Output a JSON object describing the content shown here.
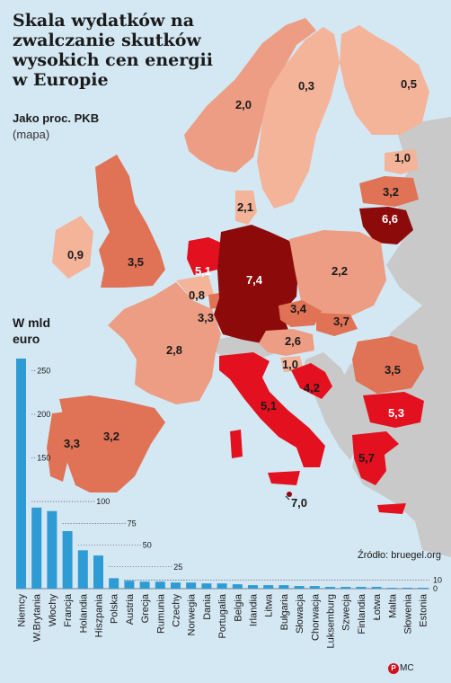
{
  "title": "Skala wydatków na zwalczanie skutków wysokich cen energii w Europie",
  "map_legend": {
    "heading": "Jako proc. PKB",
    "note": "(mapa)"
  },
  "bar_heading": "W mld euro",
  "source": "Źródło: bruegel.org",
  "logo": {
    "mark": "PAP",
    "initials": "MC"
  },
  "colors": {
    "sea": "#d4e8f4",
    "lightest": "#f3b49a",
    "light": "#ec9d83",
    "medium": "#e07256",
    "red": "#e3101f",
    "dark": "#8c0a0a",
    "nodata": "#c9c9c9",
    "bar": "#2e9bd4"
  },
  "map_values": [
    {
      "country": "Norwegia",
      "value": "2,0",
      "tone": "light"
    },
    {
      "country": "Szwecja",
      "value": "0,3",
      "tone": "lightest"
    },
    {
      "country": "Finlandia",
      "value": "0,5",
      "tone": "lightest"
    },
    {
      "country": "Estonia",
      "value": "1,0",
      "tone": "lightest"
    },
    {
      "country": "Łotwa",
      "value": "3,2",
      "tone": "medium"
    },
    {
      "country": "Litwa",
      "value": "6,6",
      "tone": "dark"
    },
    {
      "country": "Dania",
      "value": "2,1",
      "tone": "light"
    },
    {
      "country": "Irlandia",
      "value": "0,9",
      "tone": "lightest"
    },
    {
      "country": "W.Brytania",
      "value": "3,5",
      "tone": "medium"
    },
    {
      "country": "Holandia",
      "value": "5,1",
      "tone": "red"
    },
    {
      "country": "Belgia",
      "value": "0,8",
      "tone": "lightest"
    },
    {
      "country": "Luksemburg",
      "value": "3,3",
      "tone": "medium"
    },
    {
      "country": "Niemcy",
      "value": "7,4",
      "tone": "dark"
    },
    {
      "country": "Polska",
      "value": "2,2",
      "tone": "light"
    },
    {
      "country": "Czechy",
      "value": "3,4",
      "tone": "medium"
    },
    {
      "country": "Słowacja",
      "value": "3,7",
      "tone": "medium"
    },
    {
      "country": "Austria",
      "value": "2,6",
      "tone": "light"
    },
    {
      "country": "Francja",
      "value": "2,8",
      "tone": "light"
    },
    {
      "country": "Słowenia",
      "value": "1,0",
      "tone": "lightest"
    },
    {
      "country": "Chorwacja",
      "value": "4,2",
      "tone": "red"
    },
    {
      "country": "Rumunia",
      "value": "3,5",
      "tone": "medium"
    },
    {
      "country": "Bułgaria",
      "value": "5,3",
      "tone": "red"
    },
    {
      "country": "Włochy",
      "value": "5,1",
      "tone": "red"
    },
    {
      "country": "Hiszpania",
      "value": "3,2",
      "tone": "medium"
    },
    {
      "country": "Portugalia",
      "value": "3,3",
      "tone": "medium"
    },
    {
      "country": "Grecja",
      "value": "5,7",
      "tone": "red"
    },
    {
      "country": "Malta",
      "value": "7,0",
      "tone": "dark"
    }
  ],
  "chart_data": {
    "type": "bar",
    "ylabel": "W mld euro",
    "ylim": [
      0,
      265
    ],
    "yticks": [
      0,
      10,
      25,
      50,
      75,
      100,
      150,
      200,
      250
    ],
    "categories": [
      "Niemcy",
      "W.Brytania",
      "Włochy",
      "Francja",
      "Holandia",
      "Hiszpania",
      "Polska",
      "Austria",
      "Grecja",
      "Rumunia",
      "Czechy",
      "Norwegia",
      "Dania",
      "Portugalia",
      "Belgia",
      "Irlandia",
      "Litwa",
      "Bułgaria",
      "Słowacja",
      "Chorwacja",
      "Luksemburg",
      "Szwecja",
      "Finlandia",
      "Łotwa",
      "Malta",
      "Słowenia",
      "Estonia"
    ],
    "values": [
      264,
      93,
      89,
      66,
      44,
      38,
      12,
      9,
      8,
      8,
      7,
      7,
      6,
      6,
      5,
      4,
      4,
      4,
      3,
      3,
      2,
      2,
      2,
      2,
      1,
      1,
      1
    ]
  }
}
